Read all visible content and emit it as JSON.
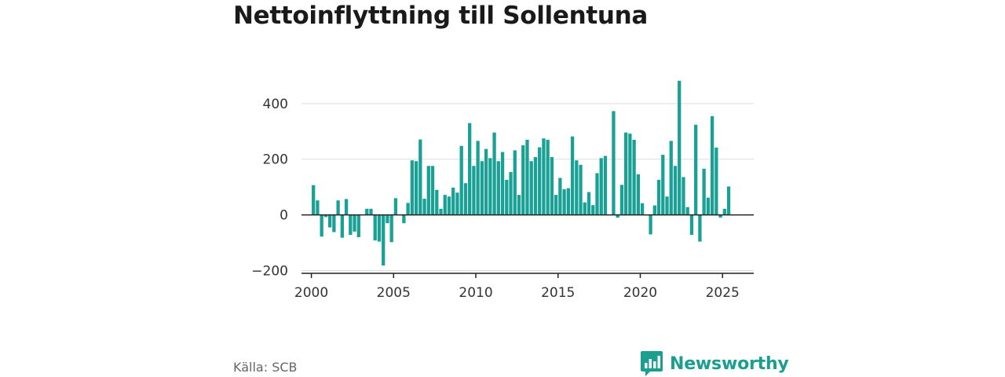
{
  "title": "Nettoinflyttning till Sollentuna",
  "source": "Källa: SCB",
  "brand": {
    "name": "Newsworthy",
    "color": "#1a9e8f",
    "logo_icon": "newsworthy-bar-chart-bubble-icon"
  },
  "colors": {
    "bar": "#1aa196",
    "grid": "#dddddd",
    "zero_line": "#222222"
  },
  "chart_data": {
    "type": "bar",
    "title": "Nettoinflyttning till Sollentuna",
    "xlabel": "",
    "ylabel": "",
    "ylim": [
      -210,
      490
    ],
    "xlim": [
      1999.4,
      2026.9
    ],
    "grid": true,
    "legend": "none",
    "y_ticks": [
      400,
      200,
      0,
      -200
    ],
    "y_tick_labels": [
      "400",
      "200",
      "0",
      "−200"
    ],
    "x_ticks": [
      2000,
      2005,
      2010,
      2015,
      2020,
      2025
    ],
    "x_tick_labels": [
      "2000",
      "2005",
      "2010",
      "2015",
      "2020",
      "2025"
    ],
    "x": [
      2000.125,
      2000.375,
      2000.625,
      2000.875,
      2001.125,
      2001.375,
      2001.625,
      2001.875,
      2002.125,
      2002.375,
      2002.625,
      2002.875,
      2003.125,
      2003.375,
      2003.625,
      2003.875,
      2004.125,
      2004.375,
      2004.625,
      2004.875,
      2005.125,
      2005.375,
      2005.625,
      2005.875,
      2006.125,
      2006.375,
      2006.625,
      2006.875,
      2007.125,
      2007.375,
      2007.625,
      2007.875,
      2008.125,
      2008.375,
      2008.625,
      2008.875,
      2009.125,
      2009.375,
      2009.625,
      2009.875,
      2010.125,
      2010.375,
      2010.625,
      2010.875,
      2011.125,
      2011.375,
      2011.625,
      2011.875,
      2012.125,
      2012.375,
      2012.625,
      2012.875,
      2013.125,
      2013.375,
      2013.625,
      2013.875,
      2014.125,
      2014.375,
      2014.625,
      2014.875,
      2015.125,
      2015.375,
      2015.625,
      2015.875,
      2016.125,
      2016.375,
      2016.625,
      2016.875,
      2017.125,
      2017.375,
      2017.625,
      2017.875,
      2018.125,
      2018.375,
      2018.625,
      2018.875,
      2019.125,
      2019.375,
      2019.625,
      2019.875,
      2020.125,
      2020.375,
      2020.625,
      2020.875,
      2021.125,
      2021.375,
      2021.625,
      2021.875,
      2022.125,
      2022.375,
      2022.625,
      2022.875,
      2023.125,
      2023.375,
      2023.625,
      2023.875,
      2024.125,
      2024.375,
      2024.625,
      2024.875,
      2025.125,
      2025.375
    ],
    "values": [
      107,
      52,
      -78,
      -8,
      -45,
      -62,
      52,
      -82,
      57,
      -72,
      -60,
      -80,
      0,
      22,
      22,
      -92,
      -96,
      -182,
      -30,
      -98,
      60,
      0,
      -30,
      43,
      196,
      193,
      271,
      58,
      176,
      176,
      90,
      22,
      72,
      66,
      98,
      80,
      248,
      114,
      330,
      176,
      266,
      193,
      237,
      204,
      296,
      193,
      226,
      126,
      154,
      232,
      72,
      250,
      270,
      193,
      208,
      243,
      275,
      270,
      208,
      72,
      133,
      92,
      96,
      282,
      196,
      180,
      45,
      82,
      35,
      150,
      204,
      212,
      0,
      373,
      -10,
      108,
      296,
      292,
      270,
      146,
      42,
      0,
      -70,
      34,
      126,
      216,
      66,
      266,
      176,
      482,
      136,
      28,
      -72,
      324,
      -96,
      166,
      62,
      355,
      242,
      -10,
      22,
      102
    ]
  }
}
